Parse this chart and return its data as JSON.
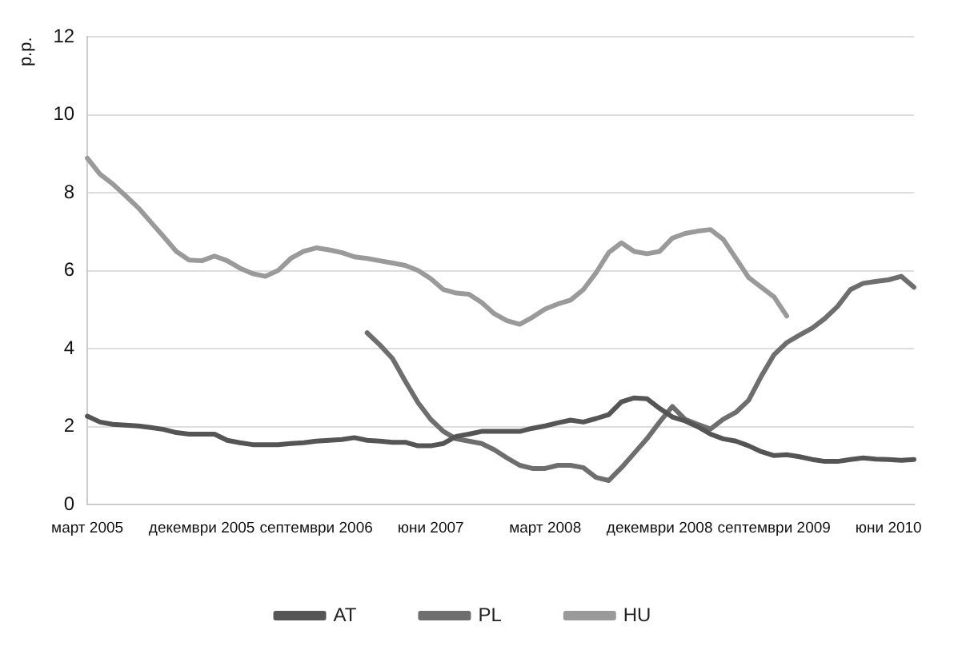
{
  "chart_data": {
    "type": "line",
    "ylabel": "p.p.",
    "categories": [
      "март 2005",
      null,
      null,
      null,
      null,
      null,
      null,
      null,
      null,
      "декември 2005",
      null,
      null,
      null,
      null,
      null,
      null,
      null,
      null,
      "септември 2006",
      null,
      null,
      null,
      null,
      null,
      null,
      null,
      null,
      "юни 2007",
      null,
      null,
      null,
      null,
      null,
      null,
      null,
      null,
      "март 2008",
      null,
      null,
      null,
      null,
      null,
      null,
      null,
      null,
      "декември 2008",
      null,
      null,
      null,
      null,
      null,
      null,
      null,
      null,
      "септември 2009",
      null,
      null,
      null,
      null,
      null,
      null,
      null,
      null,
      "юни 2010",
      null,
      null
    ],
    "series": [
      {
        "name": "AT",
        "color": "#555555",
        "values": [
          2.27,
          2.12,
          2.06,
          2.04,
          2.02,
          1.98,
          1.93,
          1.85,
          1.81,
          1.81,
          1.81,
          1.65,
          1.59,
          1.54,
          1.54,
          1.54,
          1.57,
          1.59,
          1.63,
          1.65,
          1.67,
          1.72,
          1.65,
          1.63,
          1.6,
          1.6,
          1.51,
          1.51,
          1.57,
          1.75,
          1.81,
          1.88,
          1.88,
          1.88,
          1.88,
          1.96,
          2.02,
          2.1,
          2.17,
          2.12,
          2.21,
          2.31,
          2.64,
          2.74,
          2.72,
          2.47,
          2.25,
          2.15,
          2.0,
          1.81,
          1.69,
          1.63,
          1.51,
          1.36,
          1.26,
          1.28,
          1.23,
          1.16,
          1.11,
          1.11,
          1.16,
          1.2,
          1.17,
          1.16,
          1.14,
          1.16
        ]
      },
      {
        "name": "PL",
        "color": "#6e6e6e",
        "values": [
          null,
          null,
          null,
          null,
          null,
          null,
          null,
          null,
          null,
          null,
          null,
          null,
          null,
          null,
          null,
          null,
          null,
          null,
          null,
          null,
          null,
          null,
          4.41,
          4.1,
          3.75,
          3.17,
          2.62,
          2.19,
          1.88,
          1.69,
          1.63,
          1.57,
          1.41,
          1.2,
          1.01,
          0.93,
          0.93,
          1.01,
          1.01,
          0.95,
          0.7,
          0.62,
          0.95,
          1.32,
          1.69,
          2.12,
          2.52,
          2.19,
          2.06,
          1.94,
          2.19,
          2.37,
          2.68,
          3.3,
          3.85,
          4.16,
          4.35,
          4.53,
          4.78,
          5.09,
          5.52,
          5.68,
          5.73,
          5.77,
          5.86,
          5.58
        ]
      },
      {
        "name": "HU",
        "color": "#9a9a9a",
        "values": [
          8.89,
          8.48,
          8.23,
          7.93,
          7.62,
          7.25,
          6.88,
          6.5,
          6.28,
          6.26,
          6.38,
          6.26,
          6.07,
          5.93,
          5.86,
          6.01,
          6.32,
          6.5,
          6.59,
          6.54,
          6.47,
          6.36,
          6.32,
          6.26,
          6.2,
          6.14,
          6.01,
          5.8,
          5.52,
          5.43,
          5.4,
          5.19,
          4.9,
          4.72,
          4.63,
          4.81,
          5.02,
          5.15,
          5.25,
          5.52,
          5.95,
          6.47,
          6.72,
          6.5,
          6.44,
          6.5,
          6.84,
          6.96,
          7.02,
          7.06,
          6.81,
          6.32,
          5.83,
          5.58,
          5.33,
          4.84,
          null,
          null,
          null,
          null,
          null,
          null,
          null,
          null,
          null,
          null
        ]
      }
    ],
    "ylim": [
      0,
      12
    ],
    "yticks": [
      0,
      2,
      4,
      6,
      8,
      10,
      12
    ],
    "grid": "y",
    "legend": "bottom",
    "marker": "none",
    "line_style": "solid"
  }
}
